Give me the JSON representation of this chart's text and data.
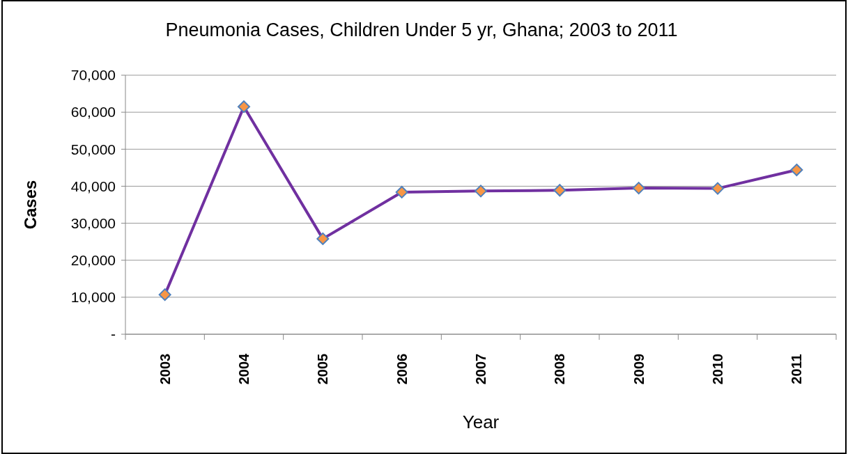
{
  "chart_data": {
    "type": "line",
    "title": "Pneumonia Cases, Children Under 5 yr,  Ghana; 2003 to 2011",
    "xlabel": "Year",
    "ylabel": "Cases",
    "categories": [
      "2003",
      "2004",
      "2005",
      "2006",
      "2007",
      "2008",
      "2009",
      "2010",
      "2011"
    ],
    "series": [
      {
        "color": "#7030a0",
        "values": [
          10700,
          61500,
          25800,
          38400,
          38700,
          38900,
          39500,
          39400,
          44400
        ]
      }
    ],
    "ylim": [
      0,
      70000
    ],
    "yticks": [
      {
        "value": 0,
        "label": "-"
      },
      {
        "value": 10000,
        "label": "10,000"
      },
      {
        "value": 20000,
        "label": "20,000"
      },
      {
        "value": 30000,
        "label": "30,000"
      },
      {
        "value": 40000,
        "label": "40,000"
      },
      {
        "value": 50000,
        "label": "50,000"
      },
      {
        "value": 60000,
        "label": "60,000"
      },
      {
        "value": 70000,
        "label": "70,000"
      }
    ],
    "grid": "y",
    "marker": "diamond",
    "line_style": "solid"
  }
}
